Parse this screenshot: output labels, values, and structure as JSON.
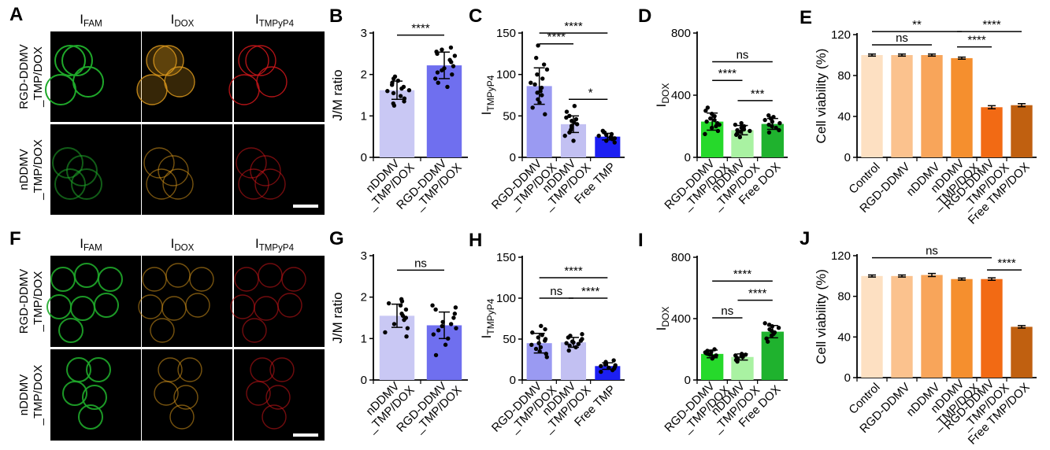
{
  "colors": {
    "fam": "#1fa82a",
    "dox": "#d9971c",
    "tmp": "#d0161a",
    "scale_bar": "#ffffff",
    "bar_rgd_light": "#c9c8f4",
    "bar_rgd_blue": "#6f6fef",
    "tmp_lav": "#9a9af2",
    "tmp_light": "#c2c0f2",
    "tmp_blue": "#1c1ff2",
    "dox_green": "#26d92b",
    "dox_light": "#a9f2a2",
    "dox_dark": "#1fb22e",
    "via1": "#fde0c2",
    "via2": "#fbc28e",
    "via3": "#f8a55a",
    "via4": "#f58f2e",
    "via5": "#f26a14",
    "via6": "#c06010"
  },
  "panels": {
    "A": {
      "letter": "A"
    },
    "F": {
      "letter": "F"
    }
  },
  "images": {
    "A": {
      "channel_labels": [
        {
          "main": "I",
          "sub": "FAM"
        },
        {
          "main": "I",
          "sub": "DOX"
        },
        {
          "main": "I",
          "sub": "TMPyP4"
        }
      ],
      "row_labels": [
        [
          "RGD-DDMV",
          "_TMP/DOX"
        ],
        [
          "nDDMV",
          "_TMP/DOX"
        ]
      ]
    },
    "F": {
      "channel_labels": [
        {
          "main": "I",
          "sub": "FAM"
        },
        {
          "main": "I",
          "sub": "DOX"
        },
        {
          "main": "I",
          "sub": "TMPyP4"
        }
      ],
      "row_labels": [
        [
          "RGD-DDMV",
          "_TMP/DOX"
        ],
        [
          "nDDMV",
          "_TMP/DOX"
        ]
      ]
    }
  },
  "chart_data": [
    {
      "panel": "B",
      "type": "bar",
      "ylabel": {
        "main": "J/M ratio",
        "sub": ""
      },
      "ylim": [
        0,
        3
      ],
      "yticks": [
        0,
        1,
        2,
        3
      ],
      "categories": [
        [
          "nDDMV",
          "_TMP/DOX"
        ],
        [
          "RGD-DDMV",
          "_TMP/DOX"
        ]
      ],
      "values": [
        1.62,
        2.22
      ],
      "errors": [
        0.22,
        0.32
      ],
      "bar_colors": [
        "bar_rgd_light",
        "bar_rgd_blue"
      ],
      "points": [
        [
          1.25,
          1.3,
          1.35,
          1.42,
          1.48,
          1.55,
          1.6,
          1.62,
          1.66,
          1.7,
          1.75,
          1.8,
          1.85,
          1.9,
          1.95
        ],
        [
          1.7,
          1.8,
          1.9,
          2.0,
          2.05,
          2.1,
          2.15,
          2.2,
          2.3,
          2.35,
          2.45,
          2.5,
          2.55,
          2.6,
          2.65
        ]
      ],
      "significance": [
        {
          "from": 0,
          "to": 1,
          "y": 2.95,
          "label": "****"
        }
      ]
    },
    {
      "panel": "C",
      "type": "bar",
      "ylabel": {
        "main": "I",
        "sub": "TMPyP4"
      },
      "ylim": [
        0,
        150
      ],
      "yticks": [
        0,
        50,
        100,
        150
      ],
      "categories": [
        [
          "RGD-DDMV",
          "_TMP/DOX"
        ],
        [
          "nDDMV",
          "_TMP/DOX"
        ],
        [
          "Free TMP"
        ]
      ],
      "values": [
        86,
        40,
        25
      ],
      "errors": [
        22,
        10,
        4
      ],
      "bar_colors": [
        "tmp_lav",
        "tmp_light",
        "tmp_blue"
      ],
      "points": [
        [
          52,
          60,
          66,
          70,
          75,
          78,
          80,
          84,
          88,
          90,
          95,
          100,
          106,
          112,
          120,
          135
        ],
        [
          20,
          26,
          30,
          33,
          36,
          38,
          40,
          42,
          44,
          46,
          48,
          50,
          55,
          62
        ],
        [
          18,
          20,
          22,
          23,
          24,
          25,
          26,
          27,
          28,
          30,
          32
        ]
      ],
      "significance": [
        {
          "from": 0,
          "to": 2,
          "y": 150,
          "label": "****"
        },
        {
          "from": 0,
          "to": 1,
          "y": 137,
          "label": "****"
        },
        {
          "from": 1,
          "to": 2,
          "y": 70,
          "label": "*"
        }
      ]
    },
    {
      "panel": "D",
      "type": "bar",
      "ylabel": {
        "main": "I",
        "sub": "DOX"
      },
      "ylim": [
        0,
        800
      ],
      "yticks": [
        0,
        400,
        800
      ],
      "categories": [
        [
          "RGD-DDMV",
          "_TMP/DOX"
        ],
        [
          "nDDMV",
          "_TMP/DOX"
        ],
        [
          "Free DOX"
        ]
      ],
      "values": [
        230,
        175,
        215
      ],
      "errors": [
        55,
        30,
        35
      ],
      "bar_colors": [
        "dox_green",
        "dox_light",
        "dox_dark"
      ],
      "points": [
        [
          150,
          170,
          190,
          200,
          210,
          220,
          230,
          240,
          250,
          265,
          280,
          300,
          320
        ],
        [
          130,
          145,
          155,
          165,
          170,
          175,
          180,
          190,
          200,
          210,
          220
        ],
        [
          160,
          175,
          190,
          200,
          210,
          220,
          230,
          240,
          250,
          260,
          270
        ]
      ],
      "significance": [
        {
          "from": 0,
          "to": 2,
          "y": 615,
          "label": "ns"
        },
        {
          "from": 0,
          "to": 1,
          "y": 495,
          "label": "****"
        },
        {
          "from": 1,
          "to": 2,
          "y": 365,
          "label": "***"
        }
      ]
    },
    {
      "panel": "E",
      "type": "bar",
      "ylabel": {
        "main": "Cell viability (%)",
        "sub": ""
      },
      "ylim": [
        0,
        120
      ],
      "yticks": [
        0,
        40,
        80,
        120
      ],
      "categories": [
        [
          "Control"
        ],
        [
          "RGD-DDMV"
        ],
        [
          "nDDMV"
        ],
        [
          "nDDMV",
          "_TMP/DOX"
        ],
        [
          "RGD-DDMV",
          "_TMP/DOX"
        ],
        [
          "Free TMP/DOX"
        ]
      ],
      "values": [
        100,
        100,
        100,
        97,
        49,
        51
      ],
      "errors": [
        1,
        1,
        1,
        1,
        1.5,
        1.5
      ],
      "bar_colors": [
        "via1",
        "via2",
        "via3",
        "via4",
        "via5",
        "via6"
      ],
      "points": [],
      "significance": [
        {
          "from": 0,
          "to": 3,
          "y": 123,
          "label": "**"
        },
        {
          "from": 0,
          "to": 2,
          "y": 110,
          "label": "ns"
        },
        {
          "from": 3,
          "to": 5,
          "y": 123,
          "label": "****"
        },
        {
          "from": 3,
          "to": 4,
          "y": 108,
          "label": "****"
        }
      ]
    },
    {
      "panel": "G",
      "type": "bar",
      "ylabel": {
        "main": "J/M ratio",
        "sub": ""
      },
      "ylim": [
        0,
        3
      ],
      "yticks": [
        0,
        1,
        2,
        3
      ],
      "categories": [
        [
          "nDDMV",
          "_TMP/DOX"
        ],
        [
          "RGD-DDMV",
          "_TMP/DOX"
        ]
      ],
      "values": [
        1.55,
        1.32
      ],
      "errors": [
        0.28,
        0.32
      ],
      "bar_colors": [
        "bar_rgd_light",
        "bar_rgd_blue"
      ],
      "points": [
        [
          1.05,
          1.15,
          1.25,
          1.35,
          1.45,
          1.5,
          1.55,
          1.6,
          1.7,
          1.8,
          1.85,
          1.9,
          1.95
        ],
        [
          0.6,
          0.85,
          1.0,
          1.1,
          1.2,
          1.25,
          1.3,
          1.35,
          1.4,
          1.5,
          1.6,
          1.7,
          1.75,
          1.8
        ]
      ],
      "significance": [
        {
          "from": 0,
          "to": 1,
          "y": 2.65,
          "label": "ns"
        }
      ]
    },
    {
      "panel": "H",
      "type": "bar",
      "ylabel": {
        "main": "I",
        "sub": "TMPyP4"
      },
      "ylim": [
        0,
        150
      ],
      "yticks": [
        0,
        50,
        100,
        150
      ],
      "categories": [
        [
          "RGD-DDMV",
          "_TMP/DOX"
        ],
        [
          "nDDMV",
          "_TMP/DOX"
        ],
        [
          "Free TMP"
        ]
      ],
      "values": [
        45,
        46,
        17
      ],
      "errors": [
        12,
        6,
        4
      ],
      "bar_colors": [
        "tmp_lav",
        "tmp_light",
        "tmp_blue"
      ],
      "points": [
        [
          28,
          32,
          35,
          38,
          40,
          43,
          45,
          48,
          50,
          52,
          55,
          58,
          62,
          66
        ],
        [
          36,
          40,
          42,
          44,
          45,
          46,
          47,
          48,
          50,
          52,
          54,
          56
        ],
        [
          10,
          12,
          14,
          15,
          16,
          17,
          18,
          19,
          20,
          22,
          24
        ]
      ],
      "significance": [
        {
          "from": 0,
          "to": 2,
          "y": 125,
          "label": "****"
        },
        {
          "from": 0,
          "to": 1,
          "y": 100,
          "label": "ns"
        },
        {
          "from": 1,
          "to": 2,
          "y": 100,
          "label": "****"
        }
      ]
    },
    {
      "panel": "I",
      "type": "bar",
      "ylabel": {
        "main": "I",
        "sub": "DOX"
      },
      "ylim": [
        0,
        800
      ],
      "yticks": [
        0,
        400,
        800
      ],
      "categories": [
        [
          "RGD-DDMV",
          "_TMP/DOX"
        ],
        [
          "nDDMV",
          "_TMP/DOX"
        ],
        [
          "Free DOX"
        ]
      ],
      "values": [
        170,
        150,
        315
      ],
      "errors": [
        25,
        20,
        40
      ],
      "bar_colors": [
        "dox_green",
        "dox_light",
        "dox_dark"
      ],
      "points": [
        [
          140,
          150,
          160,
          165,
          170,
          175,
          180,
          185,
          190,
          200
        ],
        [
          120,
          130,
          140,
          145,
          150,
          155,
          160,
          165,
          170
        ],
        [
          250,
          270,
          290,
          300,
          310,
          320,
          330,
          340,
          350,
          360,
          370
        ]
      ],
      "significance": [
        {
          "from": 0,
          "to": 2,
          "y": 645,
          "label": "****"
        },
        {
          "from": 0,
          "to": 1,
          "y": 405,
          "label": "ns"
        },
        {
          "from": 1,
          "to": 2,
          "y": 520,
          "label": "****"
        }
      ]
    },
    {
      "panel": "J",
      "type": "bar",
      "ylabel": {
        "main": "Cell viability (%)",
        "sub": ""
      },
      "ylim": [
        0,
        120
      ],
      "yticks": [
        0,
        40,
        80,
        120
      ],
      "categories": [
        [
          "Control"
        ],
        [
          "RGD-DDMV"
        ],
        [
          "nDDMV"
        ],
        [
          "nDDMV",
          "_TMP/DOX"
        ],
        [
          "RGD-DDMV",
          "_TMP/DOX"
        ],
        [
          "Free TMP/DOX"
        ]
      ],
      "values": [
        100,
        100,
        101,
        97,
        97,
        50
      ],
      "errors": [
        1,
        1,
        1.5,
        1,
        1.2,
        1.2
      ],
      "bar_colors": [
        "via1",
        "via2",
        "via3",
        "via4",
        "via5",
        "via6"
      ],
      "points": [],
      "significance": [
        {
          "from": 0,
          "to": 4,
          "y": 118,
          "label": "ns"
        },
        {
          "from": 4,
          "to": 5,
          "y": 106,
          "label": "****"
        }
      ]
    }
  ]
}
